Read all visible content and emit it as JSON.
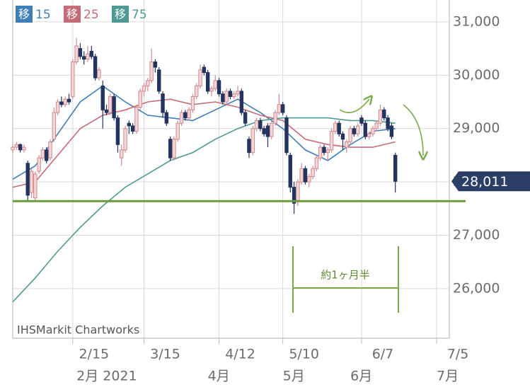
{
  "chart_data": {
    "type": "candlestick",
    "ma_label": "移",
    "source": "IHSMarkit Chartworks",
    "annotation": "約1ヶ月半",
    "last_price_label": "28,011",
    "up_color": "#d08a8f",
    "down_color": "#22345f",
    "tag_color": "#2b3f66",
    "support_line": 27640,
    "support_color": "#6a9a3a",
    "xlim": [
      0,
      113
    ],
    "ylim": [
      25070,
      31410
    ],
    "yticks": [
      {
        "value": 26000,
        "label": "26,000"
      },
      {
        "value": 27000,
        "label": "27,000"
      },
      {
        "value": 28000,
        "label": "28,000"
      },
      {
        "value": 29000,
        "label": "29,000"
      },
      {
        "value": 30000,
        "label": "30,000"
      },
      {
        "value": 31000,
        "label": "31,000"
      }
    ],
    "xticks": [
      {
        "value": 16,
        "label": "2/15"
      },
      {
        "value": 35,
        "label": "3/15"
      },
      {
        "value": 55,
        "label": "4/12"
      },
      {
        "value": 72,
        "label": "5/10"
      },
      {
        "value": 93,
        "label": "6/7"
      },
      {
        "value": 113,
        "label": "7/5"
      }
    ],
    "month_ticks": [
      {
        "value": 17,
        "label": "2月 2021"
      },
      {
        "value": 52,
        "label": "4月"
      },
      {
        "value": 72,
        "label": "5月"
      },
      {
        "value": 90,
        "label": "6月"
      },
      {
        "value": 113,
        "label": "7月"
      }
    ],
    "grid": true,
    "candles": [
      [
        28600,
        28700,
        28550,
        28650
      ],
      [
        28650,
        28750,
        28600,
        28700
      ],
      [
        28700,
        28720,
        28550,
        28600
      ],
      [
        28600,
        28700,
        28550,
        28650
      ],
      [
        28350,
        28400,
        27650,
        27750
      ],
      [
        27800,
        28250,
        27700,
        28200
      ],
      [
        27700,
        28200,
        27650,
        28150
      ],
      [
        28200,
        28500,
        28150,
        28450
      ],
      [
        28450,
        28650,
        28400,
        28600
      ],
      [
        28600,
        28650,
        28350,
        28400
      ],
      [
        28450,
        28800,
        28400,
        28750
      ],
      [
        28800,
        29400,
        28750,
        29300
      ],
      [
        29300,
        29550,
        29250,
        29500
      ],
      [
        29500,
        29600,
        29400,
        29450
      ],
      [
        29450,
        29600,
        29400,
        29550
      ],
      [
        29550,
        29650,
        29450,
        29500
      ],
      [
        29600,
        30300,
        29550,
        30250
      ],
      [
        30250,
        30700,
        30200,
        30550
      ],
      [
        30500,
        30600,
        30300,
        30350
      ],
      [
        30350,
        30450,
        30200,
        30300
      ],
      [
        30300,
        30550,
        30250,
        30400
      ],
      [
        30450,
        30550,
        30300,
        30350
      ],
      [
        30350,
        30400,
        29900,
        29950
      ],
      [
        29950,
        30150,
        29900,
        30100
      ],
      [
        29800,
        29900,
        29000,
        29350
      ],
      [
        29350,
        29450,
        29250,
        29300
      ],
      [
        29300,
        29650,
        29250,
        29600
      ],
      [
        29600,
        29650,
        29150,
        29200
      ],
      [
        29200,
        29250,
        28550,
        28700
      ],
      [
        28450,
        28700,
        28300,
        28600
      ],
      [
        28600,
        29050,
        28550,
        29000
      ],
      [
        29100,
        29150,
        28900,
        29050
      ],
      [
        29050,
        29100,
        28900,
        28950
      ],
      [
        28950,
        29450,
        28900,
        29400
      ],
      [
        29400,
        29750,
        29350,
        29700
      ],
      [
        29700,
        29850,
        29600,
        29800
      ],
      [
        29800,
        29950,
        29700,
        29900
      ],
      [
        29900,
        30500,
        29850,
        30250
      ],
      [
        30250,
        30300,
        30050,
        30150
      ],
      [
        30100,
        30150,
        29650,
        29700
      ],
      [
        29650,
        29700,
        29200,
        29300
      ],
      [
        29300,
        29350,
        29050,
        29100
      ],
      [
        28800,
        28850,
        28400,
        28450
      ],
      [
        28450,
        28850,
        28400,
        28800
      ],
      [
        28800,
        29150,
        28750,
        29100
      ],
      [
        29100,
        29350,
        29050,
        29300
      ],
      [
        29300,
        29350,
        29150,
        29200
      ],
      [
        29200,
        29400,
        29150,
        29350
      ],
      [
        29350,
        29650,
        29300,
        29600
      ],
      [
        29600,
        29850,
        29550,
        29800
      ],
      [
        29800,
        30200,
        29750,
        30100
      ],
      [
        30150,
        30200,
        30000,
        30050
      ],
      [
        30050,
        30100,
        29650,
        29700
      ],
      [
        29700,
        29800,
        29600,
        29750
      ],
      [
        29750,
        30000,
        29700,
        29900
      ],
      [
        29900,
        29950,
        29600,
        29650
      ],
      [
        29650,
        29700,
        29450,
        29500
      ],
      [
        29500,
        29750,
        29450,
        29700
      ],
      [
        29700,
        29750,
        29550,
        29600
      ],
      [
        29600,
        29700,
        29550,
        29650
      ],
      [
        29650,
        29800,
        29600,
        29700
      ],
      [
        29700,
        29750,
        29250,
        29300
      ],
      [
        29300,
        29350,
        29050,
        29100
      ],
      [
        28800,
        28850,
        28450,
        28550
      ],
      [
        28550,
        29050,
        28500,
        29000
      ],
      [
        29000,
        29200,
        28950,
        29150
      ],
      [
        29150,
        29200,
        28950,
        29000
      ],
      [
        29000,
        29050,
        28850,
        28900
      ],
      [
        29050,
        29100,
        28650,
        28850
      ],
      [
        28850,
        29150,
        28800,
        29100
      ],
      [
        29100,
        29350,
        29050,
        29300
      ],
      [
        29300,
        29650,
        29250,
        29450
      ],
      [
        29450,
        29500,
        29250,
        29300
      ],
      [
        29200,
        29250,
        28500,
        28550
      ],
      [
        28500,
        28550,
        27800,
        27900
      ],
      [
        27900,
        28000,
        27400,
        27600
      ],
      [
        27650,
        28050,
        27550,
        28000
      ],
      [
        28000,
        28350,
        27950,
        28250
      ],
      [
        28250,
        28300,
        27950,
        28000
      ],
      [
        28000,
        28150,
        27900,
        28100
      ],
      [
        28100,
        28300,
        28050,
        28250
      ],
      [
        28250,
        28500,
        28200,
        28450
      ],
      [
        28450,
        28700,
        28400,
        28650
      ],
      [
        28650,
        28700,
        28500,
        28550
      ],
      [
        28550,
        28650,
        28400,
        28600
      ],
      [
        28600,
        29000,
        28550,
        28950
      ],
      [
        28950,
        29150,
        28900,
        29100
      ],
      [
        29100,
        29150,
        28850,
        28900
      ],
      [
        28900,
        28950,
        28600,
        28800
      ],
      [
        28650,
        28800,
        28550,
        28750
      ],
      [
        28750,
        29050,
        28700,
        29000
      ],
      [
        29000,
        29050,
        28850,
        28900
      ],
      [
        28900,
        29100,
        28850,
        29050
      ],
      [
        29200,
        29250,
        29050,
        29100
      ],
      [
        29100,
        29150,
        28800,
        28850
      ],
      [
        28850,
        28950,
        28800,
        28900
      ],
      [
        28900,
        29050,
        28850,
        29000
      ],
      [
        29000,
        29150,
        28950,
        29100
      ],
      [
        29100,
        29450,
        29050,
        29350
      ],
      [
        29350,
        29400,
        29150,
        29200
      ],
      [
        29200,
        29250,
        28950,
        29000
      ],
      [
        29050,
        29100,
        28800,
        28850
      ],
      [
        28500,
        28550,
        27800,
        28011
      ]
    ],
    "ma_x": [
      0,
      6,
      12,
      18,
      24,
      30,
      36,
      42,
      48,
      54,
      60,
      66,
      72,
      78,
      84,
      90,
      96,
      102
    ],
    "series": [
      {
        "name": "15",
        "color": "#3f7fb5",
        "values": [
          28050,
          28300,
          28900,
          29500,
          29800,
          29500,
          29250,
          29200,
          29150,
          29350,
          29550,
          29300,
          29000,
          28600,
          28400,
          28700,
          28950,
          29000
        ]
      },
      {
        "name": "25",
        "color": "#c46b78",
        "values": [
          27900,
          28000,
          28500,
          29000,
          29250,
          29350,
          29500,
          29550,
          29450,
          29500,
          29400,
          29250,
          29150,
          28800,
          28700,
          28650,
          28650,
          28750
        ]
      },
      {
        "name": "75",
        "color": "#4e9a92",
        "values": [
          25750,
          26200,
          26700,
          27150,
          27550,
          27900,
          28150,
          28400,
          28550,
          28800,
          29000,
          29150,
          29200,
          29200,
          29200,
          29150,
          29150,
          29100
        ]
      }
    ]
  }
}
